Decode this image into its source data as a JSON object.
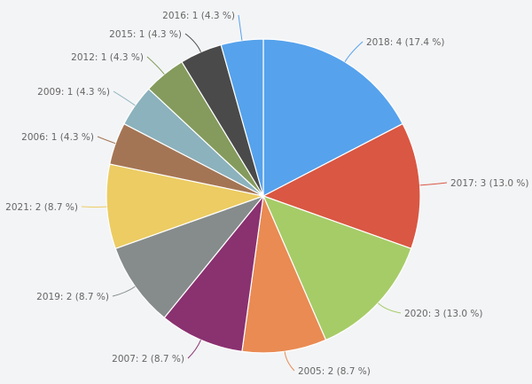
{
  "chart_data": {
    "type": "pie",
    "title": "",
    "legend": "none",
    "slices": [
      {
        "label": "2018: 4 (17.4 %)",
        "category": "2018",
        "value": 4,
        "percent": 17.4,
        "color": "#56a2ec"
      },
      {
        "label": "2017: 3 (13.0 %)",
        "category": "2017",
        "value": 3,
        "percent": 13.0,
        "color": "#d95743"
      },
      {
        "label": "2020: 3 (13.0 %)",
        "category": "2020",
        "value": 3,
        "percent": 13.0,
        "color": "#a6cc68"
      },
      {
        "label": "2005: 2 (8.7 %)",
        "category": "2005",
        "value": 2,
        "percent": 8.7,
        "color": "#e98b53"
      },
      {
        "label": "2007: 2 (8.7 %)",
        "category": "2007",
        "value": 2,
        "percent": 8.7,
        "color": "#8a3170"
      },
      {
        "label": "2019: 2 (8.7 %)",
        "category": "2019",
        "value": 2,
        "percent": 8.7,
        "color": "#868c8b"
      },
      {
        "label": "2021: 2 (8.7 %)",
        "category": "2021",
        "value": 2,
        "percent": 8.7,
        "color": "#eccc63"
      },
      {
        "label": "2006: 1 (4.3 %)",
        "category": "2006",
        "value": 1,
        "percent": 4.3,
        "color": "#a47554"
      },
      {
        "label": "2009: 1 (4.3 %)",
        "category": "2009",
        "value": 1,
        "percent": 4.3,
        "color": "#8bb2bd"
      },
      {
        "label": "2012: 1 (4.3 %)",
        "category": "2012",
        "value": 1,
        "percent": 4.3,
        "color": "#849b5d"
      },
      {
        "label": "2015: 1 (4.3 %)",
        "category": "2015",
        "value": 1,
        "percent": 4.3,
        "color": "#4a4a4a"
      },
      {
        "label": "2016: 1 (4.3 %)",
        "category": "2016",
        "value": 1,
        "percent": 4.3,
        "color": "#56a2ec"
      }
    ]
  }
}
